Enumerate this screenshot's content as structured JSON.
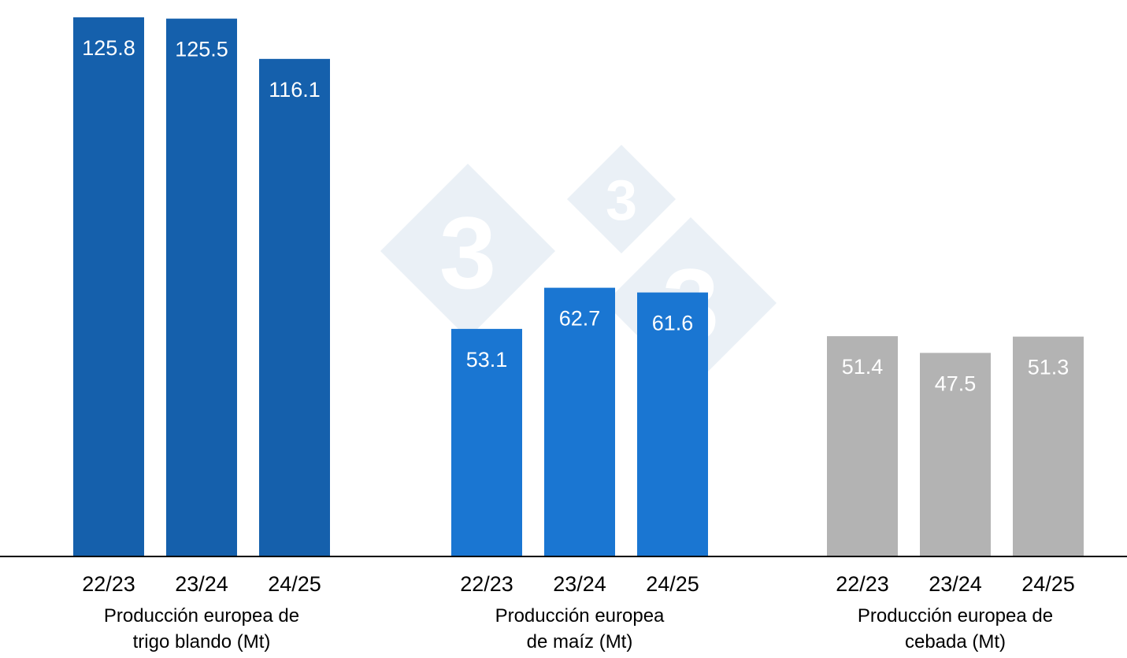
{
  "chart_data": {
    "type": "bar",
    "ylim": [
      0,
      130
    ],
    "grid": false,
    "legend": "none",
    "groups": [
      {
        "label_lines": [
          "Producción europea de",
          "trigo blando (Mt)"
        ],
        "categories": [
          "22/23",
          "23/24",
          "24/25"
        ],
        "values": [
          125.8,
          125.5,
          116.1
        ],
        "labels": [
          "125.8",
          "125.5",
          "116.1"
        ],
        "color": "#1560AC"
      },
      {
        "label_lines": [
          "Producción europea",
          "de maíz (Mt)"
        ],
        "categories": [
          "22/23",
          "23/24",
          "24/25"
        ],
        "values": [
          53.1,
          62.7,
          61.6
        ],
        "labels": [
          "53.1",
          "62.7",
          "61.6"
        ],
        "color": "#1A76D2"
      },
      {
        "label_lines": [
          "Producción europea de",
          "cebada (Mt)"
        ],
        "categories": [
          "22/23",
          "23/24",
          "24/25"
        ],
        "values": [
          51.4,
          47.5,
          51.3
        ],
        "labels": [
          "51.4",
          "47.5",
          "51.3"
        ],
        "color": "#B3B3B3"
      }
    ]
  },
  "watermark": {
    "digit": "3",
    "color": "#EAF0F6",
    "icon": "333-logo-watermark"
  }
}
